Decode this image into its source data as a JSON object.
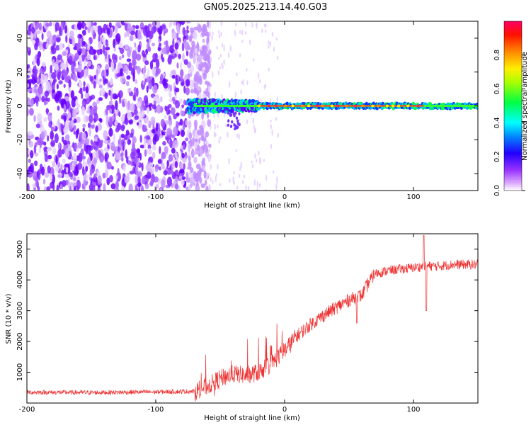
{
  "title": "GN05.2025.213.14.40.G03",
  "chart_data": [
    {
      "type": "heatmap",
      "xlabel": "Height of straight line (km)",
      "ylabel": "Frequency (Hz)",
      "xlim": [
        -200,
        150
      ],
      "ylim": [
        -50,
        50
      ],
      "xticks": [
        -200,
        -100,
        0,
        100
      ],
      "yticks": [
        40,
        20,
        0,
        -20,
        -40
      ],
      "colorbar": {
        "label": "Normalized spectral amplitude",
        "range": [
          0,
          1
        ],
        "ticks": [
          0.0,
          0.2,
          0.4,
          0.6,
          0.8
        ],
        "colors": [
          "#ffffff",
          "#cc33ff",
          "#6600ff",
          "#0000ff",
          "#00ffff",
          "#00ff00",
          "#ffff00",
          "#ff8800",
          "#ff0000",
          "#ff0088"
        ]
      },
      "features": {
        "noise_region_x": [
          -200,
          -70
        ],
        "carrier_frequency_hz": 0,
        "carrier_visible_from_x": -75,
        "carrier_color_peak": "#ff2040"
      }
    },
    {
      "type": "line",
      "xlabel": "Height of straight line (km)",
      "ylabel": "SNR (10 * v/v)",
      "xlim": [
        -200,
        150
      ],
      "ylim": [
        0,
        5500
      ],
      "xticks": [
        -200,
        -100,
        0,
        100
      ],
      "yticks": [
        5000,
        4000,
        3000,
        2000,
        1000
      ],
      "line_color": "#ee3333",
      "trend": {
        "x": [
          -200,
          -150,
          -100,
          -70,
          -60,
          -50,
          -40,
          -30,
          -20,
          -10,
          0,
          10,
          20,
          30,
          40,
          50,
          60,
          65,
          70,
          80,
          90,
          100,
          110,
          120,
          130,
          140,
          150
        ],
        "y": [
          350,
          340,
          360,
          380,
          550,
          800,
          950,
          900,
          1000,
          1300,
          1700,
          2200,
          2550,
          2850,
          3100,
          3350,
          3500,
          3900,
          4200,
          4300,
          4350,
          4400,
          4450,
          4450,
          4500,
          4500,
          4500
        ]
      }
    }
  ]
}
